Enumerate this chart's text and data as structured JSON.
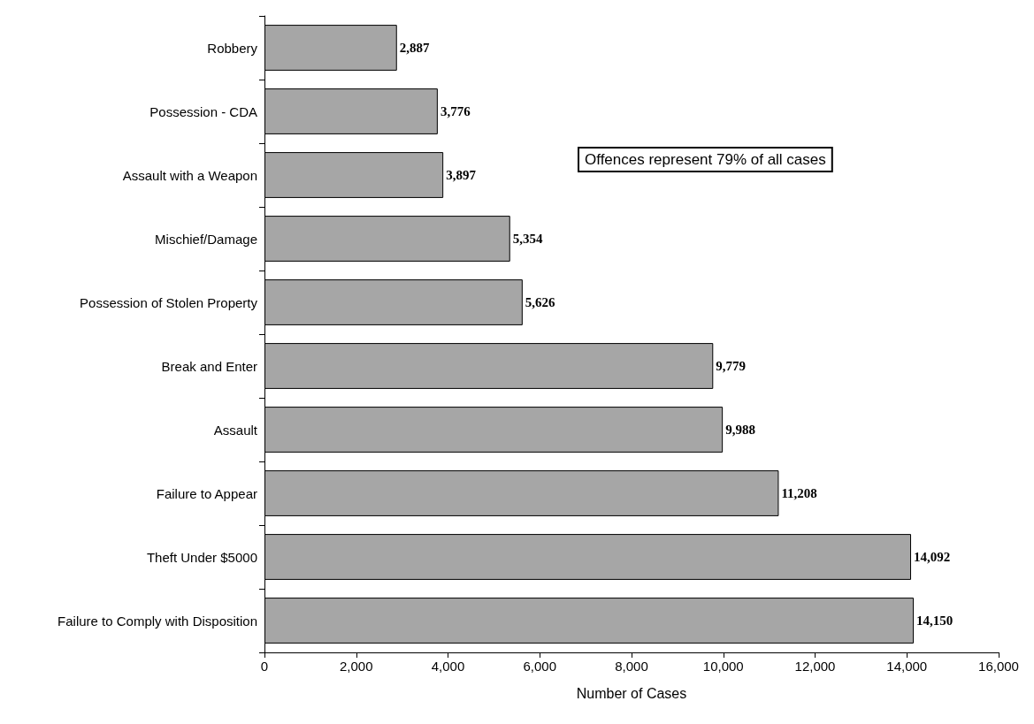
{
  "chart_data": {
    "type": "bar",
    "orientation": "horizontal",
    "xlabel": "Number of Cases",
    "categories": [
      "Robbery",
      "Possession - CDA",
      "Assault with a Weapon",
      "Mischief/Damage",
      "Possession of Stolen Property",
      "Break and Enter",
      "Assault",
      "Failure to Appear",
      "Theft Under $5000",
      "Failure to Comply with Disposition"
    ],
    "values": [
      2887,
      3776,
      3897,
      5354,
      5626,
      9779,
      9988,
      11208,
      14092,
      14150
    ],
    "value_labels": [
      "2,887",
      "3,776",
      "3,897",
      "5,354",
      "5,626",
      "9,779",
      "9,988",
      "11,208",
      "14,092",
      "14,150"
    ],
    "color": "#a6a6a6",
    "xlim": [
      0,
      16000
    ],
    "xticks": [
      0,
      {
        "value": 2000,
        "label": "2,000"
      },
      {
        "value": 4000,
        "label": "4,000"
      },
      {
        "value": 6000,
        "label": "6,000"
      },
      {
        "value": 8000,
        "label": "8,000"
      },
      {
        "value": 10000,
        "label": "10,000"
      },
      {
        "value": 12000,
        "label": "12,000"
      },
      {
        "value": 14000,
        "label": "14,000"
      },
      {
        "value": 16000,
        "label": "16,000"
      }
    ],
    "grid": false,
    "annotations": [
      "Offences represent 79% of all cases"
    ]
  }
}
